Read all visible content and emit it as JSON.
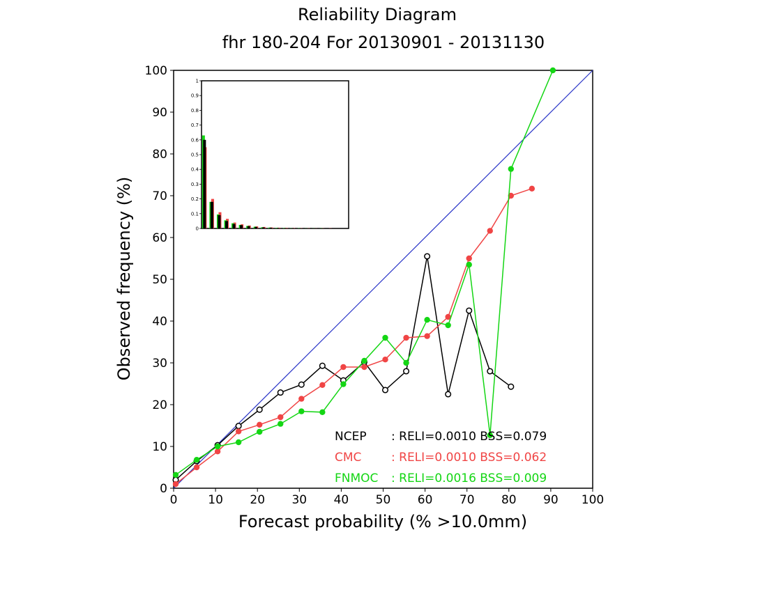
{
  "chart_data": {
    "type": "line",
    "title": "Reliability Diagram",
    "subtitle": "fhr 180-204 For 20130901 - 20131130",
    "xlabel": "Forecast probability (% >10.0mm)",
    "ylabel": "Observed frequency (%)",
    "xlim": [
      0,
      100
    ],
    "ylim": [
      0,
      100
    ],
    "xticks": [
      0,
      10,
      20,
      30,
      40,
      50,
      60,
      70,
      80,
      90,
      100
    ],
    "yticks": [
      0,
      10,
      20,
      30,
      40,
      50,
      60,
      70,
      80,
      90,
      100
    ],
    "diagonal_color": "#2a35c8",
    "series": [
      {
        "name": "NCEP",
        "color": "#000000",
        "marker": "open-circle",
        "x": [
          0.5,
          5.5,
          10.5,
          15.5,
          20.5,
          25.5,
          30.5,
          35.5,
          40.5,
          45.5,
          50.5,
          55.5,
          60.5,
          65.5,
          70.5,
          75.5,
          80.5
        ],
        "y": [
          2,
          6.5,
          10.3,
          14.9,
          18.8,
          22.9,
          24.8,
          29.3,
          25.8,
          30.2,
          23.5,
          28,
          55.5,
          22.5,
          42.5,
          28,
          24.3
        ]
      },
      {
        "name": "CMC",
        "color": "#f04545",
        "marker": "filled-circle",
        "x": [
          0.5,
          5.5,
          10.5,
          15.5,
          20.5,
          25.5,
          30.5,
          35.5,
          40.5,
          45.5,
          50.5,
          55.5,
          60.5,
          65.5,
          70.5,
          75.5,
          80.5,
          85.5
        ],
        "y": [
          1,
          5,
          8.8,
          13.6,
          15.2,
          17,
          21.4,
          24.7,
          29,
          29,
          30.8,
          36,
          36.4,
          41,
          55,
          61.6,
          70,
          71.7
        ]
      },
      {
        "name": "FNMOC",
        "color": "#14d614",
        "marker": "filled-circle",
        "x": [
          0.5,
          5.5,
          10.5,
          15.5,
          20.5,
          25.5,
          30.5,
          35.5,
          40.5,
          45.5,
          50.5,
          55.5,
          60.5,
          65.5,
          70.5,
          75.5,
          80.5,
          90.5
        ],
        "y": [
          3.2,
          6.8,
          10,
          11,
          13.5,
          15.4,
          18.4,
          18.2,
          24.9,
          30.5,
          36,
          30,
          40.3,
          39,
          53.5,
          12.7,
          76.4,
          100
        ]
      }
    ],
    "legend": [
      {
        "name": "NCEP",
        "text": ": RELI=0.0010 BSS=0.079",
        "color": "#000000"
      },
      {
        "name": "CMC",
        "text": ": RELI=0.0010 BSS=0.062",
        "color": "#f04545"
      },
      {
        "name": "FNMOC",
        "text": ": RELI=0.0016 BSS=0.009",
        "color": "#14d614"
      }
    ],
    "inset": {
      "type": "bar",
      "ylim": [
        0,
        1
      ],
      "yticks": [
        "0",
        "0.1",
        "0.2",
        "0.3",
        "0.4",
        "0.5",
        "0.6",
        "0.7",
        "0.8",
        "0.9",
        "1"
      ],
      "bins": 20,
      "series": [
        {
          "name": "CMC",
          "color": "#f04545",
          "values": [
            0.55,
            0.2,
            0.11,
            0.065,
            0.04,
            0.028,
            0.02,
            0.014,
            0.01,
            0.007,
            0.005,
            0.004,
            0.003,
            0.002,
            0.002,
            0.001,
            0.001,
            0.001,
            0,
            0
          ]
        },
        {
          "name": "FNMOC",
          "color": "#14d614",
          "values": [
            0.63,
            0.18,
            0.095,
            0.055,
            0.035,
            0.024,
            0.017,
            0.012,
            0.008,
            0.006,
            0.004,
            0.003,
            0.002,
            0.002,
            0.001,
            0.001,
            0.001,
            0,
            0,
            0
          ]
        },
        {
          "name": "NCEP",
          "color": "#000000",
          "values": [
            0.6,
            0.18,
            0.09,
            0.05,
            0.03,
            0.022,
            0.015,
            0.01,
            0.007,
            0.005,
            0.003,
            0.002,
            0.002,
            0.001,
            0.001,
            0.001,
            0,
            0,
            0,
            0
          ]
        }
      ]
    }
  }
}
